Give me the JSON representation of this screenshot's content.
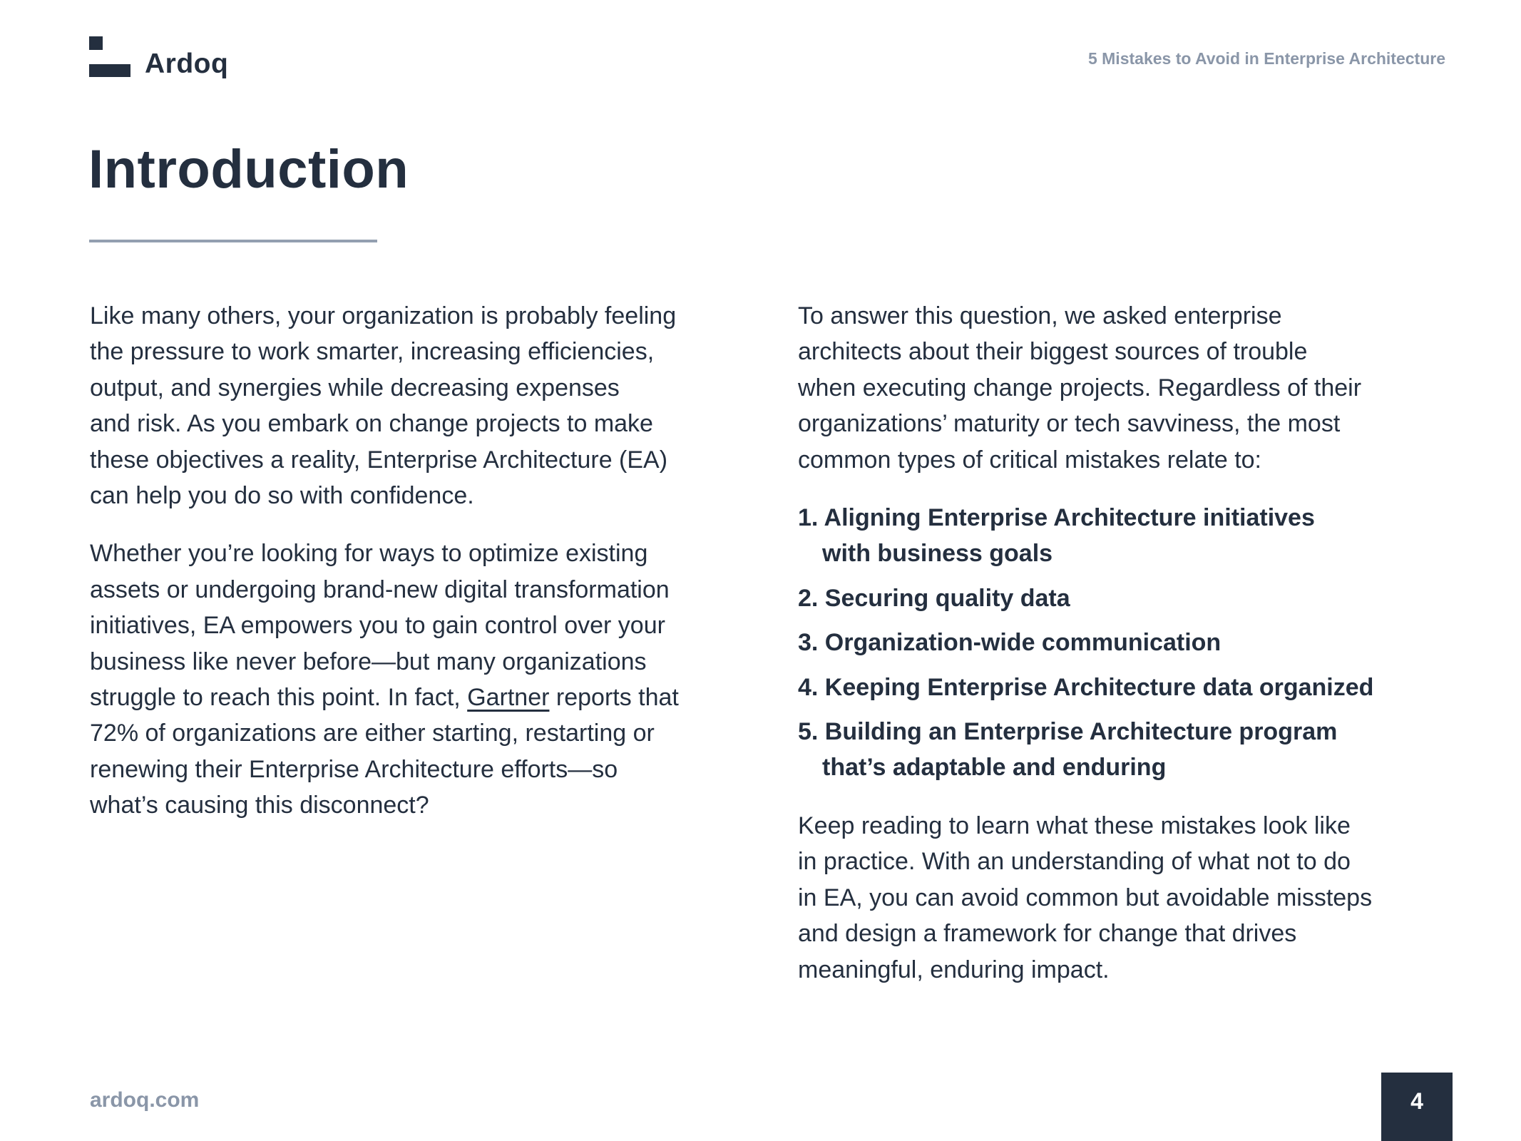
{
  "header": {
    "logo_text": "Ardoq",
    "doc_title": "5 Mistakes to Avoid in Enterprise Architecture"
  },
  "page_title": "Introduction",
  "left_column": {
    "para1": [
      "Like many others, your organization is probably feeling",
      "the pressure to work smarter, increasing efficiencies,",
      "output, and synergies while decreasing expenses",
      "and risk. As you embark on change projects to make",
      "these objectives a reality, Enterprise Architecture (EA)",
      "can help you do so with confidence."
    ],
    "para2": [
      "Whether you’re looking for ways to optimize existing",
      "assets or undergoing brand-new digital transformation",
      "initiatives, EA empowers you to gain control over your",
      "business like never before—but many organizations"
    ],
    "para2_link_line": {
      "before": "struggle to reach this point. In fact, ",
      "link": "Gartner",
      "after": " reports that"
    },
    "para2_rest": [
      "72% of organizations are either starting, restarting or",
      "renewing their Enterprise Architecture efforts—so",
      "what’s causing this disconnect?"
    ]
  },
  "right_column": {
    "para1": [
      "To answer this question, we asked enterprise",
      "architects about their biggest sources of trouble",
      "when executing change projects. Regardless of their",
      "organizations’ maturity or tech savviness, the most",
      "common types of critical mistakes relate to:"
    ],
    "list": [
      {
        "line1": "1. Aligning Enterprise Architecture initiatives",
        "line2": "with business goals"
      },
      {
        "line1": "2. Securing quality data"
      },
      {
        "line1": "3. Organization-wide communication"
      },
      {
        "line1": "4. Keeping Enterprise Architecture data organized"
      },
      {
        "line1": "5. Building an Enterprise Architecture program",
        "line2": "that’s adaptable and enduring"
      }
    ],
    "para2": [
      "Keep reading to learn what these mistakes look like",
      "in practice. With an understanding of what not to do",
      "in EA, you can avoid common but avoidable missteps",
      "and design a framework for change that drives",
      "meaningful, enduring impact."
    ]
  },
  "footer": {
    "url": "ardoq.com",
    "page_number": "4"
  },
  "colors": {
    "text": "#242f3f",
    "muted": "#8a96a8",
    "rule": "#939fb0"
  }
}
